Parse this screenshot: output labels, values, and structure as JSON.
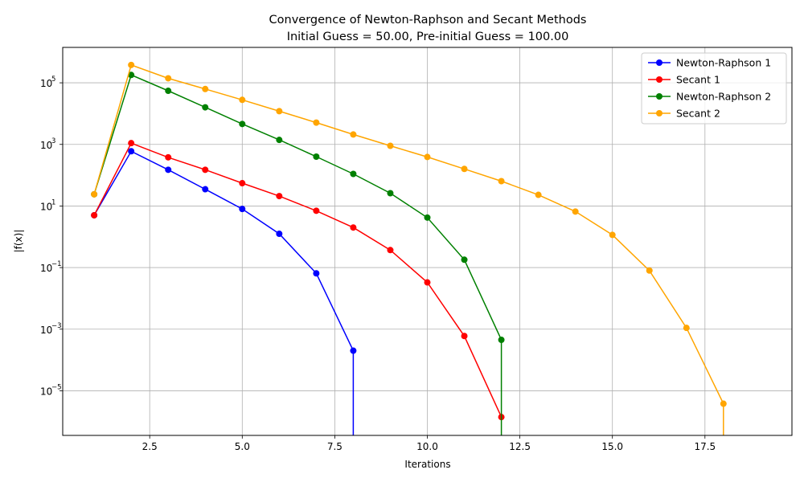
{
  "chart_data": {
    "type": "line",
    "title": "Convergence of Newton-Raphson and Secant Methods",
    "subtitle": "Initial Guess = 50.00, Pre-initial Guess = 100.00",
    "xlabel": "Iterations",
    "ylabel": "|f(x)|",
    "y_scale": "log",
    "xlim": [
      0.15,
      19.85
    ],
    "ylim_log10": [
      -6.45,
      6.15
    ],
    "x_ticks": [
      2.5,
      5.0,
      7.5,
      10.0,
      12.5,
      15.0,
      17.5
    ],
    "x_tick_labels": [
      "2.5",
      "5.0",
      "7.5",
      "10.0",
      "12.5",
      "15.0",
      "17.5"
    ],
    "y_ticks_exp": [
      5,
      3,
      1,
      -1,
      -3,
      -5
    ],
    "y_tick_base": "10",
    "y_tick_exponents": [
      "5",
      "3",
      "1",
      "−1",
      "−3",
      "−5"
    ],
    "grid": true,
    "legend_position": "top-right",
    "series": [
      {
        "name": "Newton-Raphson 1",
        "color": "#0000ff",
        "x": [
          1,
          2,
          3,
          4,
          5,
          6,
          7,
          8,
          8
        ],
        "y": [
          5.0,
          600,
          150,
          35,
          8.0,
          1.25,
          0.065,
          0.0002,
          1e-09
        ]
      },
      {
        "name": "Secant 1",
        "color": "#ff0000",
        "x": [
          1,
          2,
          3,
          4,
          5,
          6,
          7,
          8,
          9,
          10,
          11,
          12
        ],
        "y": [
          5.0,
          1100,
          380,
          150,
          55,
          21,
          7.0,
          2.0,
          0.37,
          0.033,
          0.0006,
          1.4e-06
        ]
      },
      {
        "name": "Newton-Raphson 2",
        "color": "#008000",
        "x": [
          1,
          2,
          3,
          4,
          5,
          6,
          7,
          8,
          9,
          10,
          11,
          12,
          12
        ],
        "y": [
          24,
          180000,
          55000,
          16000,
          4600,
          1400,
          400,
          110,
          26,
          4.2,
          0.18,
          0.00045,
          1e-09
        ]
      },
      {
        "name": "Secant 2",
        "color": "#ffa500",
        "x": [
          1,
          2,
          3,
          4,
          5,
          6,
          7,
          8,
          9,
          10,
          11,
          12,
          13,
          14,
          15,
          16,
          17,
          18,
          18
        ],
        "y": [
          24,
          380000,
          140000,
          63000,
          28000,
          12000,
          5100,
          2100,
          900,
          390,
          160,
          64,
          23,
          6.6,
          1.15,
          0.08,
          0.0011,
          3.8e-06,
          1e-09
        ]
      }
    ]
  }
}
